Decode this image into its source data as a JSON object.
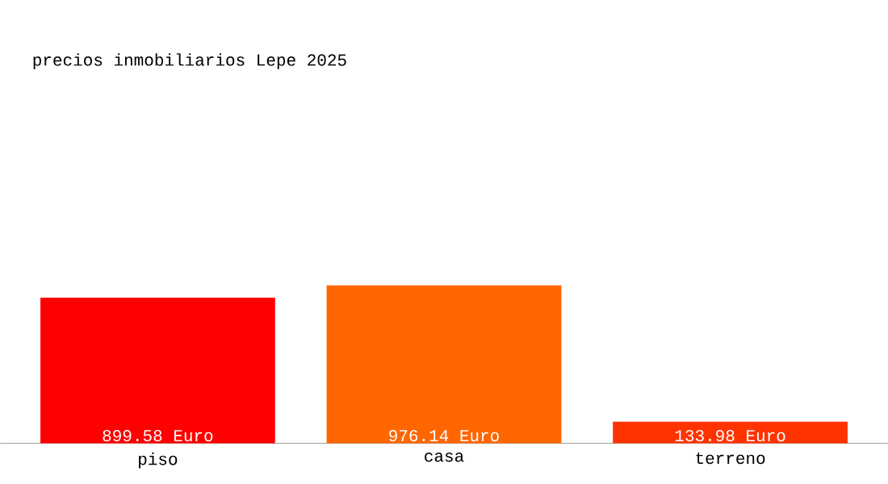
{
  "chart_data": {
    "type": "bar",
    "title": "precios inmobiliarios Lepe 2025",
    "categories": [
      "piso",
      "casa",
      "terreno"
    ],
    "values": [
      899.58,
      976.14,
      133.98
    ],
    "colors": [
      "#ff0000",
      "#ff6600",
      "#ff3300"
    ],
    "value_labels": [
      "899.58 Euro",
      "976.14 Euro",
      "133.98 Euro"
    ]
  }
}
